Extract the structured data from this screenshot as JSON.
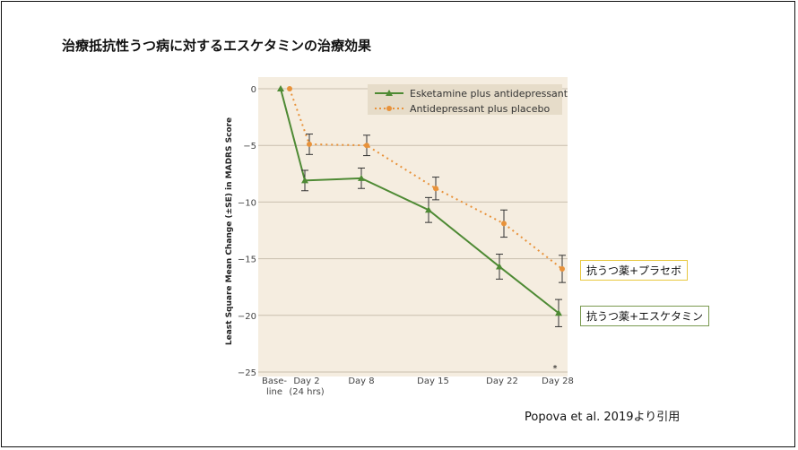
{
  "slide": {
    "title": "治療抵抗性うつ病に対するエスケタミンの治療効果",
    "citation": "Popova et al. 2019より引用",
    "tag_placebo": "抗うつ薬+プラセボ",
    "tag_esketamine": "抗うつ薬+エスケタミン"
  },
  "chart_data": {
    "type": "line",
    "title": "",
    "xlabel": "",
    "ylabel": "Least Square Mean Change (±SE) in MADRS Score",
    "categories": [
      "Base-\nline",
      "Day 2\n(24 hrs)",
      "Day 8",
      "Day 15",
      "Day 22",
      "Day 28"
    ],
    "ylim": [
      -25,
      0
    ],
    "yticks": [
      0,
      -5,
      -10,
      -15,
      -20,
      -25
    ],
    "grid": true,
    "legend_position": "top-right",
    "annotation": "*",
    "series": [
      {
        "name": "Esketamine plus antidepressant",
        "color": "#4e8a34",
        "marker": "triangle",
        "style": "solid",
        "values": [
          0,
          -8.1,
          -7.9,
          -10.7,
          -15.7,
          -19.8
        ],
        "se": [
          0,
          0.9,
          0.9,
          1.1,
          1.1,
          1.2
        ]
      },
      {
        "name": "Antidepressant plus placebo",
        "color": "#e8923a",
        "marker": "circle",
        "style": "dotted",
        "values": [
          0,
          -4.9,
          -5.0,
          -8.8,
          -11.9,
          -15.9
        ],
        "se": [
          0,
          0.9,
          0.9,
          1.0,
          1.2,
          1.2
        ]
      }
    ],
    "colors": {
      "background": "#f5ede0",
      "legend_bg": "#e6dcc9",
      "grid": "#c9bfae"
    }
  }
}
